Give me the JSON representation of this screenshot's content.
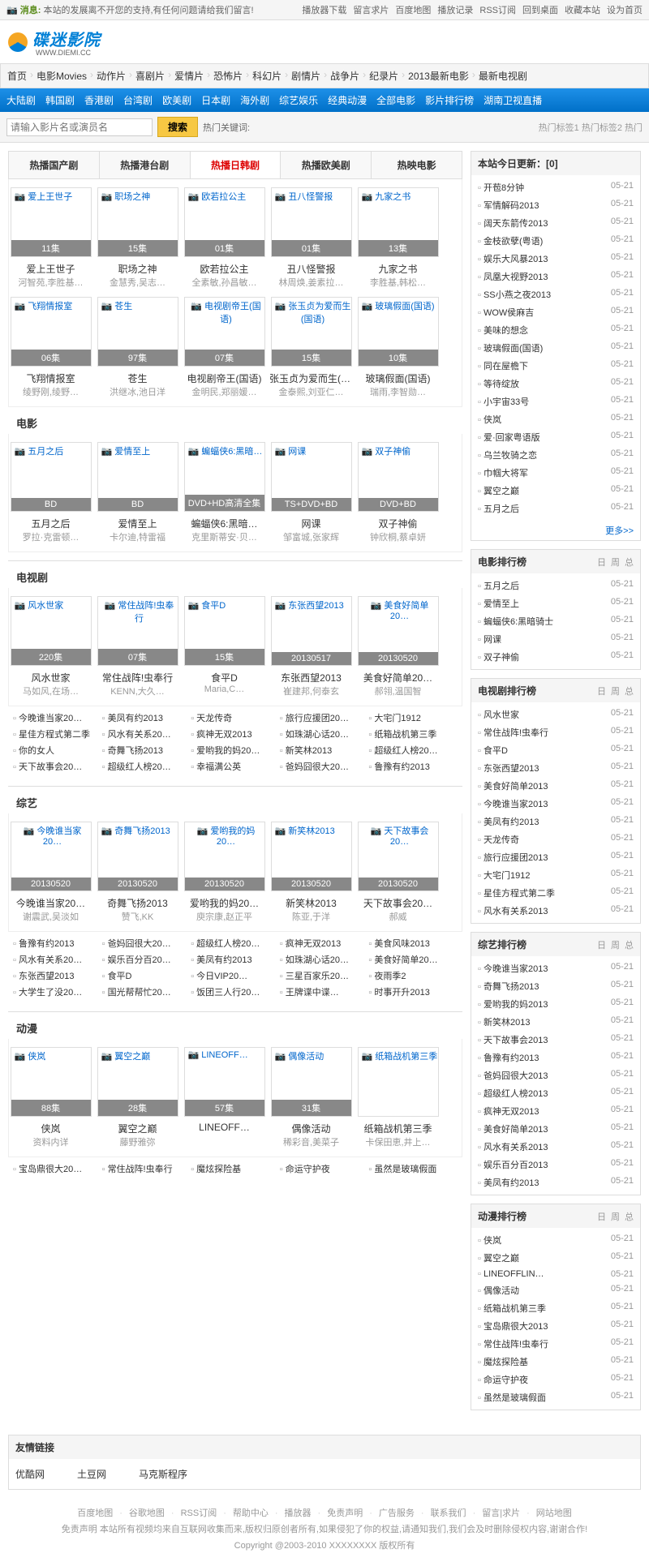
{
  "topbar": {
    "msgLabel": "📷 消息:",
    "msg": "本站的发展离不开您的支持,有任何问题请给我们留言!",
    "links": [
      "播放器下载",
      "留言求片",
      "百度地图",
      "播放记录",
      "RSS订阅",
      "回到桌面",
      "收藏本站",
      "设为首页"
    ]
  },
  "logo": {
    "text": "碟迷影院",
    "sub": "WWW.DIEMI.CC"
  },
  "nav": [
    "首页",
    "电影Movies",
    "动作片",
    "喜剧片",
    "爱情片",
    "恐怖片",
    "科幻片",
    "剧情片",
    "战争片",
    "纪录片",
    "2013最新电影",
    "最新电视剧"
  ],
  "subnav": [
    "大陆剧",
    "韩国剧",
    "香港剧",
    "台湾剧",
    "欧美剧",
    "日本剧",
    "海外剧",
    "综艺娱乐",
    "经典动漫",
    "全部电影",
    "影片排行榜",
    "湖南卫视直播"
  ],
  "search": {
    "placeholder": "请输入影片名或演员名",
    "btn": "搜索",
    "hotLabel": "热门关键词:",
    "tags": "热门标签1 热门标签2 热门"
  },
  "featTabs": [
    "热播国产剧",
    "热播港台剧",
    "热播日韩剧",
    "热播欧美剧",
    "热映电影"
  ],
  "featTabActive": 2,
  "featured": [
    {
      "name": "爱上王世子",
      "badge": "11集",
      "meta": "河智苑,李胜基…"
    },
    {
      "name": "职场之神",
      "badge": "15集",
      "meta": "金慧秀,吴志…",
      "blue": true
    },
    {
      "name": "欧若拉公主",
      "badge": "01集",
      "meta": "全素敏,孙昌敏…"
    },
    {
      "name": "丑八怪警报",
      "badge": "01集",
      "meta": "林周焕,姜素拉…"
    },
    {
      "name": "九家之书",
      "badge": "13集",
      "meta": "李胜基,韩松…"
    },
    {
      "name": "飞翔情报室",
      "badge": "06集",
      "meta": "绫野刚,绫野…"
    },
    {
      "name": "苍生",
      "badge": "97集",
      "meta": "洪继冰,池日洋"
    },
    {
      "name": "电视剧帝王(国语)",
      "badge": "07集",
      "meta": "金明民,郑丽媛…"
    },
    {
      "name": "张玉贞为爱而生(国语)",
      "badge": "15集",
      "meta": "金泰熙,刘亚仁…"
    },
    {
      "name": "玻璃假面(国语)",
      "badge": "10集",
      "meta": "瑞雨,李智勋…"
    }
  ],
  "updateTitle": "本站今日更新：[0]",
  "updates": [
    "开苞8分钟",
    "军情解码2013",
    "阔天东箭传2013",
    "金枝欲孽(粤语)",
    "娱乐大风暴2013",
    "凤凰大视野2013",
    "SS小燕之夜2013",
    "WOW侯麻吉",
    "美味的想念",
    "玻璃假面(国语)",
    "同在屋檐下",
    "等待绽放",
    "小宇宙33号",
    "侠岚",
    "爱·回家粤语版",
    "乌兰牧骑之恋",
    "巾帼大将军",
    "翼空之巅",
    "五月之后"
  ],
  "updateDate": "05-21",
  "more": "更多>>",
  "ranks": [
    {
      "title": "电影排行榜",
      "items": [
        "五月之后",
        "爱情至上",
        "蝙蝠侠6:黑暗骑士",
        "网课",
        "双子神偷"
      ]
    },
    {
      "title": "电视剧排行榜",
      "items": [
        "风水世家",
        "常住战阵!虫奉行",
        "食平D",
        "东张西望2013",
        "美食好简单2013",
        "今晚谁当家2013",
        "美凤有约2013",
        "天龙传奇",
        "旅行应援团2013",
        "大宅门1912",
        "星佳方程式第二季",
        "风水有关系2013"
      ]
    },
    {
      "title": "综艺排行榜",
      "items": [
        "今晚谁当家2013",
        "奇舞飞扬2013",
        "爱哟我的妈2013",
        "新笑林2013",
        "天下故事会2013",
        "鲁豫有约2013",
        "爸妈囧很大2013",
        "超级红人榜2013",
        "疯神无双2013",
        "美食好简单2013",
        "风水有关系2013",
        "娱乐百分百2013",
        "美凤有约2013"
      ]
    },
    {
      "title": "动漫排行榜",
      "items": [
        "侠岚",
        "翼空之巅",
        "LINEOFFLIN…",
        "偶像活动",
        "纸箱战机第三季",
        "宝岛鼎很大2013",
        "常住战阵!虫奉行",
        "魔炫探险基",
        "命运守护夜",
        "虽然是玻璃假面"
      ]
    }
  ],
  "sections": [
    {
      "title": "电影",
      "items": [
        {
          "name": "五月之后",
          "badge": "BD",
          "meta": "罗拉·克雷顿…"
        },
        {
          "name": "爱情至上",
          "badge": "BD",
          "meta": "卡尔迪,特雷福"
        },
        {
          "name": "蝙蝠侠6:黑暗…",
          "badge": "DVD+HD高清全集",
          "meta": "克里斯蒂安·贝…"
        },
        {
          "name": "网课",
          "badge": "TS+DVD+BD",
          "meta": "邹富城,张家辉"
        },
        {
          "name": "双子神偷",
          "badge": "DVD+BD",
          "meta": "钟欣桐,蔡卓妍"
        }
      ]
    },
    {
      "title": "电视剧",
      "items": [
        {
          "name": "风水世家",
          "badge": "220集",
          "meta": "马如风,在场…"
        },
        {
          "name": "常住战阵!虫奉行",
          "badge": "07集",
          "meta": "KENN,大久…"
        },
        {
          "name": "食平D",
          "badge": "15集",
          "meta": "Maria,C…"
        },
        {
          "name": "东张西望2013",
          "badge": "20130517",
          "meta": "崔建邦,何泰玄"
        },
        {
          "name": "美食好简单20…",
          "badge": "20130520",
          "meta": "郝翎,温国智"
        }
      ],
      "textList": [
        "今晚谁当家20…",
        "美凤有约2013",
        "天龙传奇",
        "旅行应援团20…",
        "大宅门1912",
        "星佳方程式第二季",
        "风水有关系20…",
        "疯神无双2013",
        "如珠湖心话20…",
        "纸箱战机第三季",
        "你的女人",
        "奇舞飞扬2013",
        "爱哟我的妈20…",
        "新笑林2013",
        "超级红人榜20…",
        "天下故事会20…",
        "超级红人榜20…",
        "幸福满公英",
        "爸妈囧很大20…",
        "鲁豫有约2013"
      ]
    },
    {
      "title": "综艺",
      "items": [
        {
          "name": "今晚谁当家20…",
          "badge": "20130520",
          "meta": "谢震武,吴淡如"
        },
        {
          "name": "奇舞飞扬2013",
          "badge": "20130520",
          "meta": "赞飞,KK"
        },
        {
          "name": "爱哟我的妈20…",
          "badge": "20130520",
          "meta": "庾宗康,赵正平"
        },
        {
          "name": "新笑林2013",
          "badge": "20130520",
          "meta": "陈亚,于洋"
        },
        {
          "name": "天下故事会20…",
          "badge": "20130520",
          "meta": "郝威"
        }
      ],
      "textList": [
        "鲁豫有约2013",
        "爸妈囧很大20…",
        "超级红人榜20…",
        "疯神无双2013",
        "美食风味2013",
        "风水有关系20…",
        "娱乐百分百20…",
        "美凤有约2013",
        "如珠湖心话20…",
        "美食好简单20…",
        "东张西望2013",
        "食平D",
        "今日VIP20…",
        "三星百家乐20…",
        "夜雨季2",
        "大学生了没20…",
        "国光帮帮忙20…",
        "饭团三人行20…",
        "王牌谍中谍…",
        "时事开升2013"
      ]
    },
    {
      "title": "动漫",
      "items": [
        {
          "name": "侠岚",
          "badge": "88集",
          "meta": "资料内详"
        },
        {
          "name": "翼空之巅",
          "badge": "28集",
          "meta": "藤野雅弥"
        },
        {
          "name": "LINEOFF…",
          "badge": "57集",
          "meta": ""
        },
        {
          "name": "偶像活动",
          "badge": "31集",
          "meta": "稀彩音,美菜子"
        },
        {
          "name": "纸箱战机第三季",
          "badge": "",
          "meta": "卡保田恵,井上…"
        }
      ],
      "textList": [
        "宝岛鼎很大20…",
        "常住战阵!虫奉行",
        "魔炫探险基",
        "命运守护夜",
        "虽然是玻璃假面"
      ]
    }
  ],
  "sideTabs": [
    "日",
    "周",
    "总"
  ],
  "friendLinks": {
    "title": "友情链接",
    "items": [
      "优酷网",
      "土豆网",
      "马克斯程序"
    ]
  },
  "footer": {
    "links": [
      "百度地图",
      "谷歌地图",
      "RSS订阅",
      "帮助中心",
      "播放器",
      "免责声明",
      "广告服务",
      "联系我们",
      "留言|求片",
      "网站地图"
    ],
    "disclaimer": "免责声明 本站所有视频均来自互联网收集而来,版权归原创者所有,如果侵犯了你的权益,请通知我们,我们会及时删除侵权内容,谢谢合作!",
    "copyright": "Copyright @2003-2010 XXXXXXXX 版权所有"
  }
}
